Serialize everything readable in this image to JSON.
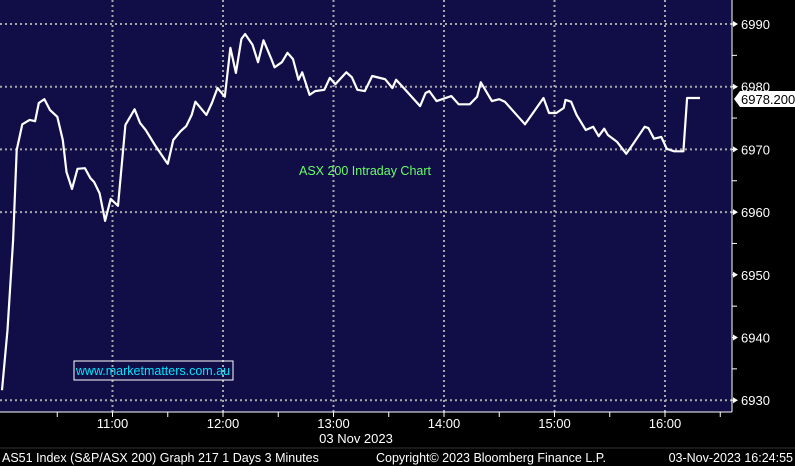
{
  "chart_data": {
    "type": "line",
    "title": "ASX 200 Intraday Chart",
    "watermark": "www.marketmatters.com.au",
    "date_label": "03 Nov 2023",
    "xlim": [
      "10:00",
      "16:24"
    ],
    "ylim": [
      6928,
      6993
    ],
    "x_ticks": [
      "11:00",
      "12:00",
      "13:00",
      "14:00",
      "15:00",
      "16:00"
    ],
    "y_ticks": [
      6990,
      6980,
      6970,
      6960,
      6950,
      6940,
      6930
    ],
    "y_gridlines": [
      6990,
      6980,
      6970,
      6960,
      6930
    ],
    "y_axis_side": "right",
    "grid": true,
    "last_value_label": "6978.200",
    "last_value": 6978.2,
    "colors": {
      "background": "#100d47",
      "line": "#ffffff",
      "grid": "#a8a8a8",
      "title": "#66ff66",
      "watermark": "#00e5ff"
    },
    "series": [
      {
        "x": [
          "10:00",
          "10:03",
          "10:06",
          "10:08",
          "10:11",
          "10:15",
          "10:18",
          "10:20",
          "10:23",
          "10:26",
          "10:30",
          "10:33",
          "10:35",
          "10:38",
          "10:41",
          "10:45",
          "10:48",
          "10:50",
          "10:53",
          "10:56",
          "10:59",
          "11:03",
          "11:07",
          "11:12",
          "11:15",
          "11:18",
          "11:23",
          "11:29",
          "11:30",
          "11:33",
          "11:37",
          "11:40",
          "11:43",
          "11:45",
          "11:51",
          "11:54",
          "11:57",
          "12:01",
          "12:04",
          "12:07",
          "12:10",
          "12:12",
          "12:16",
          "12:19",
          "12:22",
          "12:26",
          "12:28",
          "12:32",
          "12:35",
          "12:38",
          "12:41",
          "12:43",
          "12:47",
          "12:50",
          "12:55",
          "12:58",
          "13:01",
          "13:07",
          "13:10",
          "13:13",
          "13:17",
          "13:21",
          "13:28",
          "13:32",
          "13:34",
          "13:39",
          "13:47",
          "13:50",
          "13:52",
          "13:56",
          "14:04",
          "14:08",
          "14:14",
          "14:18",
          "14:20",
          "14:26",
          "14:30",
          "14:33",
          "14:44",
          "14:49",
          "14:54",
          "14:57",
          "15:01",
          "15:05",
          "15:06",
          "15:09",
          "15:12",
          "15:17",
          "15:21",
          "15:24",
          "15:27",
          "15:29",
          "15:34",
          "15:39",
          "15:43",
          "15:49",
          "15:51",
          "15:54",
          "15:58",
          "16:01",
          "16:05",
          "16:10",
          "16:12",
          "16:19"
        ],
        "values": [
          6931.6,
          6941.2,
          6955.5,
          6969.9,
          6974.0,
          6974.7,
          6974.5,
          6977.4,
          6978.0,
          6976.3,
          6975.2,
          6971.5,
          6966.4,
          6963.7,
          6966.9,
          6967.0,
          6965.4,
          6964.8,
          6963.0,
          6958.6,
          6962.1,
          6961.0,
          6973.9,
          6976.4,
          6974.2,
          6973.1,
          6970.7,
          6968.1,
          6967.7,
          6971.5,
          6972.9,
          6973.7,
          6975.5,
          6977.6,
          6975.5,
          6977.4,
          6979.8,
          6978.4,
          6986.2,
          6982.2,
          6987.6,
          6988.4,
          6986.7,
          6983.9,
          6987.4,
          6984.6,
          6983.1,
          6983.9,
          6985.4,
          6984.4,
          6981.1,
          6982.3,
          6978.7,
          6979.3,
          6979.5,
          6981.4,
          6980.4,
          6982.3,
          6981.5,
          6979.5,
          6979.3,
          6981.7,
          6981.2,
          6979.8,
          6981.1,
          6979.5,
          6976.9,
          6979.0,
          6979.3,
          6977.7,
          6978.5,
          6977.2,
          6977.2,
          6978.4,
          6980.7,
          6977.7,
          6978.0,
          6977.6,
          6974.0,
          6976.1,
          6978.2,
          6975.8,
          6975.8,
          6976.6,
          6977.9,
          6977.6,
          6975.5,
          6973.1,
          6973.6,
          6972.1,
          6973.3,
          6972.3,
          6971.2,
          6969.3,
          6971.0,
          6973.6,
          6973.4,
          6971.7,
          6972.0,
          6970.1,
          6969.7,
          6969.7,
          6978.2,
          6978.2
        ]
      }
    ]
  },
  "footer": {
    "left": "AS51 Index (S&P/ASX 200) Graph 217 1 Days 3 Minutes",
    "center": "Copyright© 2023 Bloomberg Finance L.P.",
    "right": "03-Nov-2023 16:24:55"
  }
}
